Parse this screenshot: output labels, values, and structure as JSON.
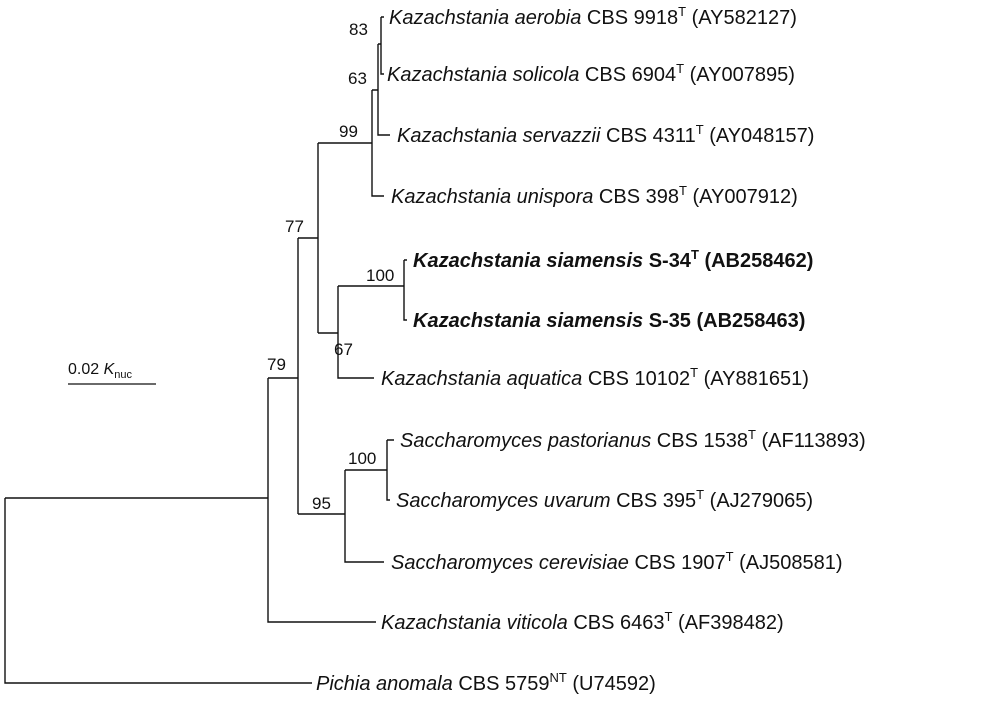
{
  "tree": {
    "taxa": [
      {
        "id": "t1",
        "genus_species": "Kazachstania aerobia",
        "strain": "CBS 9918",
        "type_mark": "T",
        "accession": "(AY582127)",
        "bold": false
      },
      {
        "id": "t2",
        "genus_species": "Kazachstania solicola",
        "strain": "CBS 6904",
        "type_mark": "T",
        "accession": "(AY007895)",
        "bold": false
      },
      {
        "id": "t3",
        "genus_species": "Kazachstania servazzii",
        "strain": "CBS 4311",
        "type_mark": "T",
        "accession": "(AY048157)",
        "bold": false
      },
      {
        "id": "t4",
        "genus_species": "Kazachstania unispora",
        "strain": "CBS 398",
        "type_mark": "T",
        "accession": "(AY007912)",
        "bold": false
      },
      {
        "id": "t5",
        "genus_species": "Kazachstania siamensis",
        "strain": "S-34",
        "type_mark": "T",
        "accession": "(AB258462)",
        "bold": true
      },
      {
        "id": "t6",
        "genus_species": "Kazachstania siamensis",
        "strain": "S-35",
        "type_mark": "",
        "accession": "(AB258463)",
        "bold": true
      },
      {
        "id": "t7",
        "genus_species": "Kazachstania aquatica",
        "strain": "CBS 10102",
        "type_mark": "T",
        "accession": "(AY881651)",
        "bold": false
      },
      {
        "id": "t8",
        "genus_species": "Saccharomyces pastorianus",
        "strain": "CBS 1538",
        "type_mark": "T",
        "accession": "(AF113893)",
        "bold": false
      },
      {
        "id": "t9",
        "genus_species": "Saccharomyces uvarum",
        "strain": "CBS 395",
        "type_mark": "T",
        "accession": "(AJ279065)",
        "bold": false
      },
      {
        "id": "t10",
        "genus_species": "Saccharomyces cerevisiae",
        "strain": "CBS 1907",
        "type_mark": "T",
        "accession": "(AJ508581)",
        "bold": false
      },
      {
        "id": "t11",
        "genus_species": "Kazachstania viticola",
        "strain": "CBS 6463",
        "type_mark": "T",
        "accession": "(AF398482)",
        "bold": false
      },
      {
        "id": "t12",
        "genus_species": "Pichia anomala",
        "strain": "CBS 5759",
        "type_mark": "NT",
        "accession": "(U74592)",
        "bold": false
      }
    ],
    "bootstrap_values": [
      "83",
      "63",
      "99",
      "77",
      "100",
      "67",
      "79",
      "100",
      "95"
    ],
    "scale": {
      "value": "0.02",
      "symbol": "K",
      "subscript": "nuc"
    }
  }
}
